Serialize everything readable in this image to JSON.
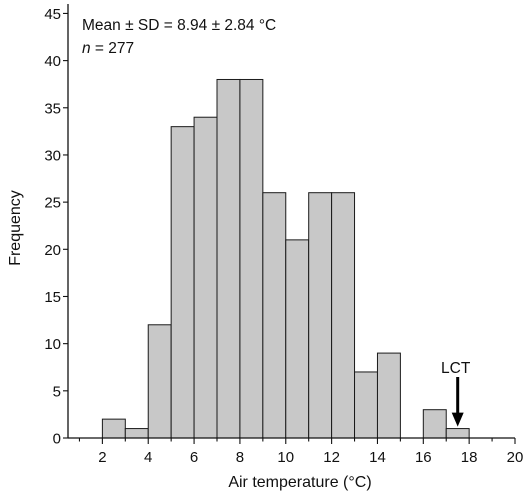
{
  "chart_data": {
    "type": "bar",
    "xlabel": "Air temperature (°C)",
    "ylabel": "Frequency",
    "xlim": [
      0.5,
      20
    ],
    "ylim": [
      0,
      46
    ],
    "x_ticks": [
      2,
      4,
      6,
      8,
      10,
      12,
      14,
      16,
      18,
      20
    ],
    "y_ticks": [
      0,
      5,
      10,
      15,
      20,
      25,
      30,
      35,
      40,
      45
    ],
    "bin_width": 1,
    "bin_starts": [
      2,
      3,
      4,
      5,
      6,
      7,
      8,
      9,
      10,
      11,
      12,
      13,
      14,
      15,
      16,
      17
    ],
    "values": [
      2,
      1,
      12,
      33,
      34,
      38,
      38,
      26,
      21,
      26,
      26,
      7,
      9,
      0,
      3,
      1
    ],
    "bar_color": "#c8c8c8",
    "bar_edge_color": "#1a1a1a",
    "annotation_line1": "Mean ± SD = 8.94 ± 2.84 °C",
    "annotation_n_symbol": "n",
    "annotation_n_rest": " = 277",
    "arrow_label": "LCT",
    "arrow_x": 17.5,
    "arrow_tip_value": 1.2
  }
}
